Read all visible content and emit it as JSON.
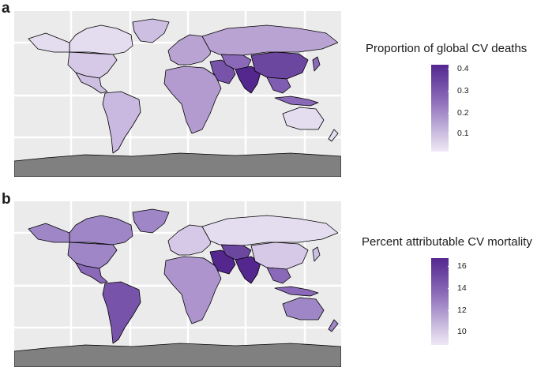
{
  "panels": [
    {
      "letter": "a",
      "legend_title": "Proportion of global CV deaths",
      "legend_ticks": [
        "0.4",
        "0.3",
        "0.2",
        "0.1"
      ]
    },
    {
      "letter": "b",
      "legend_title": "Percent attributable CV mortality",
      "legend_ticks": [
        "16",
        "14",
        "12",
        "10"
      ]
    }
  ],
  "colors": {
    "map_background": "#ebebeb",
    "grid": "#ffffff",
    "antarctica": "#808080",
    "border": "#000000",
    "scale_dark": "#54278f",
    "scale_light": "#efe9f5"
  }
}
